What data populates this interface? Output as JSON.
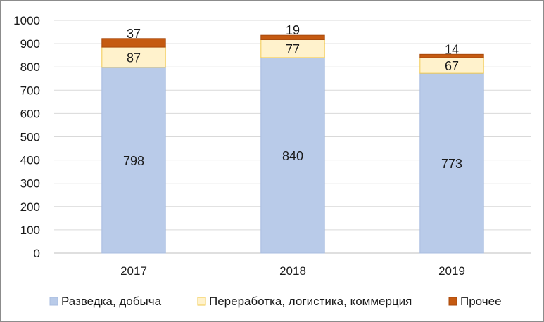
{
  "chart_data": {
    "type": "bar",
    "stacked": true,
    "categories": [
      "2017",
      "2018",
      "2019"
    ],
    "series": [
      {
        "name": "Разведка, добыча",
        "values": [
          798,
          840,
          773
        ],
        "color": "#b9cbe9",
        "stroke": "#a9bde0"
      },
      {
        "name": "Переработка, логистика, коммерция",
        "values": [
          87,
          77,
          67
        ],
        "color": "#fff2cc",
        "stroke": "#f2c94c"
      },
      {
        "name": "Прочее",
        "values": [
          37,
          19,
          14
        ],
        "color": "#c55a11",
        "stroke": "#a8490c"
      }
    ],
    "ylim": [
      0,
      1000
    ],
    "yticks": [
      0,
      100,
      200,
      300,
      400,
      500,
      600,
      700,
      800,
      900,
      1000
    ],
    "grid": true,
    "legend": "bottom"
  }
}
